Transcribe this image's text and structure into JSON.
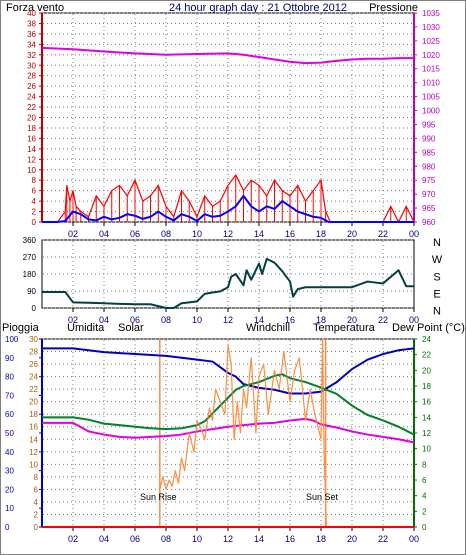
{
  "header": {
    "left_label": "Forza vento",
    "title": "24 hour graph day : 21 Ottobre 2012",
    "right_label": "Pressione"
  },
  "x_axis": {
    "ticks": [
      {
        "hour": 2,
        "label": "02"
      },
      {
        "hour": 4,
        "label": "04"
      },
      {
        "hour": 6,
        "label": "06"
      },
      {
        "hour": 8,
        "label": "08"
      },
      {
        "hour": 10,
        "label": "10"
      },
      {
        "hour": 12,
        "label": "12"
      },
      {
        "hour": 14,
        "label": "14"
      },
      {
        "hour": 16,
        "label": "16"
      },
      {
        "hour": 18,
        "label": "18"
      },
      {
        "hour": 20,
        "label": "20"
      },
      {
        "hour": 22,
        "label": "22"
      },
      {
        "hour": 24,
        "label": "00"
      }
    ]
  },
  "bottom_header": {
    "pioggia": "Pioggia",
    "umidita": "Umidita",
    "solar": "Solar",
    "windchill": "Windchill",
    "temperatura": "Temperatura",
    "dewpoint": "Dew Point (°C)"
  },
  "annotations": {
    "sunrise": "Sun Rise",
    "sunset": "Sun Set"
  },
  "colors": {
    "wind_gust": "#ff0000",
    "wind_avg": "#0000ff",
    "pressure": "#e000e0",
    "direction": "#004040",
    "humidity": "#0000c0",
    "temperature": "#008000",
    "windchill": "#008080",
    "dewpoint": "#e000e0",
    "solar": "#ff8c40",
    "rain": "#ff0000",
    "axis_left": "#c00000",
    "axis_right_top": "#c000c0",
    "axis_right_bottom": "#007000"
  },
  "chart_data": [
    {
      "type": "line",
      "name": "wind_pressure",
      "x_range": [
        0,
        24
      ],
      "y_left": {
        "ticks": [
          0,
          2,
          4,
          6,
          8,
          10,
          12,
          14,
          16,
          18,
          20,
          22,
          24,
          26,
          28,
          30,
          32,
          34,
          36,
          38,
          40
        ],
        "range": [
          0,
          40
        ]
      },
      "y_right": {
        "ticks": [
          960,
          965,
          970,
          975,
          980,
          985,
          990,
          995,
          1000,
          1005,
          1010,
          1015,
          1020,
          1025,
          1030,
          1035
        ],
        "range": [
          960,
          1035
        ]
      },
      "series": [
        {
          "key": "gust",
          "axis": "left",
          "x": [
            0,
            1,
            1.5,
            1.6,
            1.8,
            2,
            2.2,
            2.5,
            3,
            3.5,
            4,
            4.5,
            5,
            5.5,
            6,
            6.5,
            7,
            7.5,
            8,
            8.5,
            9,
            9.5,
            10,
            10.5,
            11,
            11.5,
            12,
            12.5,
            13,
            13.5,
            14,
            14.5,
            15,
            15.5,
            16,
            16.5,
            17,
            17.5,
            18,
            18.3,
            18.6,
            19,
            20,
            21,
            22,
            22.5,
            23,
            23.5,
            24
          ],
          "y": [
            0,
            0,
            2,
            7,
            4,
            6,
            3,
            2,
            1,
            5,
            3,
            6,
            7,
            5,
            8,
            4,
            5,
            7,
            3,
            1,
            6,
            4,
            1,
            5,
            3,
            4,
            7,
            9,
            6,
            8,
            7,
            5,
            8,
            6,
            5,
            7,
            4,
            6,
            8,
            2,
            0,
            0,
            0,
            0,
            0,
            3,
            0,
            3,
            0
          ]
        },
        {
          "key": "avg",
          "axis": "left",
          "x": [
            0,
            1,
            1.5,
            2,
            2.5,
            3,
            3.5,
            4,
            4.5,
            5,
            5.5,
            6,
            6.5,
            7,
            7.5,
            8,
            8.5,
            9,
            9.5,
            10,
            10.5,
            11,
            11.5,
            12,
            12.5,
            13,
            13.5,
            14,
            14.5,
            15,
            15.5,
            16,
            16.5,
            17,
            17.5,
            18,
            18.5,
            19,
            20,
            21,
            22,
            23,
            24
          ],
          "y": [
            0,
            0,
            0.2,
            2,
            1.5,
            0.5,
            0.3,
            1,
            0.5,
            0.8,
            1.5,
            1.2,
            0.6,
            1,
            2,
            1,
            0.3,
            1.5,
            1,
            0.2,
            1.5,
            1,
            1.2,
            2,
            3,
            5,
            3,
            2,
            3,
            2.5,
            4,
            3,
            2,
            1.5,
            1,
            0.8,
            0,
            0,
            0,
            0,
            0,
            0,
            0
          ]
        },
        {
          "key": "pressure",
          "axis": "right",
          "x": [
            0,
            2,
            4,
            6,
            8,
            10,
            12,
            13,
            14,
            15,
            16,
            17,
            18,
            19,
            20,
            21,
            22,
            23,
            24
          ],
          "y": [
            1022.5,
            1022,
            1021.2,
            1020.5,
            1020,
            1020.3,
            1020.5,
            1020,
            1019.2,
            1018.3,
            1017.5,
            1017,
            1017.2,
            1017.8,
            1018.3,
            1018.6,
            1018.6,
            1018.8,
            1018.8
          ]
        }
      ]
    },
    {
      "type": "line",
      "name": "wind_direction",
      "x_range": [
        0,
        24
      ],
      "y": {
        "ticks": [
          0,
          90,
          180,
          270,
          360
        ],
        "range": [
          0,
          360
        ]
      },
      "compass": [
        "N",
        "W",
        "S",
        "E",
        "N"
      ],
      "series": [
        {
          "key": "direction",
          "x": [
            0,
            1.5,
            2,
            3,
            4,
            5,
            6,
            7,
            8,
            8.5,
            9,
            9.5,
            10,
            10.5,
            11,
            11.5,
            12,
            12.2,
            12.5,
            13,
            13.2,
            13.5,
            14,
            14.2,
            14.5,
            15,
            15.5,
            16,
            16.2,
            16.5,
            17,
            18,
            19,
            20,
            21,
            22,
            23,
            23.5,
            24
          ],
          "y": [
            85,
            85,
            30,
            28,
            25,
            22,
            20,
            20,
            0,
            0,
            25,
            30,
            35,
            75,
            82,
            88,
            110,
            165,
            180,
            120,
            200,
            150,
            235,
            180,
            260,
            240,
            195,
            140,
            60,
            100,
            110,
            110,
            110,
            110,
            140,
            130,
            200,
            115,
            115
          ]
        }
      ]
    },
    {
      "type": "line",
      "name": "weather",
      "x_range": [
        0,
        24
      ],
      "y_left": {
        "ticks": [
          0,
          10,
          20,
          30,
          40,
          50,
          60,
          70,
          80,
          90,
          100
        ],
        "range": [
          0,
          100
        ]
      },
      "y_solar": {
        "ticks": [
          0,
          2,
          4,
          6,
          8,
          10,
          12,
          14,
          16,
          18,
          20,
          22,
          24,
          26,
          28,
          30
        ],
        "range": [
          0,
          30
        ]
      },
      "y_right": {
        "ticks": [
          0,
          2,
          4,
          6,
          8,
          10,
          12,
          14,
          16,
          18,
          20,
          22,
          24
        ],
        "range": [
          0,
          24
        ]
      },
      "sunrise_hour": 7.6,
      "sunset_hour": 18.3,
      "series": [
        {
          "key": "humidity",
          "axis": "left",
          "x": [
            0,
            2,
            4,
            6,
            8,
            9,
            10,
            11,
            11.5,
            12,
            12.5,
            13,
            14,
            15,
            16,
            17,
            18,
            19,
            20,
            21,
            22,
            23,
            24
          ],
          "y": [
            95,
            95,
            93,
            92,
            91,
            90,
            89,
            88,
            85,
            82,
            80,
            76,
            74,
            73,
            71,
            71,
            72,
            77,
            84,
            89,
            92,
            94,
            95
          ]
        },
        {
          "key": "temperature",
          "axis": "right",
          "x": [
            0,
            1,
            2,
            3,
            4,
            5,
            6,
            7,
            8,
            9,
            10,
            10.5,
            11,
            11.5,
            12,
            12.5,
            13,
            14,
            15,
            15.5,
            16,
            17,
            18,
            19,
            20,
            21,
            22,
            23,
            24
          ],
          "y": [
            14,
            14,
            14,
            13.7,
            13.2,
            13,
            12.8,
            12.6,
            12.5,
            12.6,
            13,
            13.5,
            14.5,
            15.5,
            16.5,
            17.5,
            18,
            18.5,
            19.3,
            19.5,
            19,
            18.5,
            17.8,
            17,
            15.5,
            14.3,
            13.6,
            12.8,
            11.8
          ]
        },
        {
          "key": "dewpoint",
          "axis": "right",
          "x": [
            0,
            2,
            3,
            4,
            5,
            6,
            7,
            8,
            9,
            10,
            11,
            12,
            13,
            14,
            15,
            16,
            17,
            17.5,
            18,
            19,
            20,
            21,
            22,
            23,
            24
          ],
          "y": [
            13.3,
            13.3,
            12.2,
            11.8,
            11.5,
            11.4,
            11.5,
            11.6,
            11.8,
            12.2,
            12.5,
            12.8,
            13,
            13.2,
            13.3,
            13.6,
            13.8,
            13.6,
            13.1,
            12.7,
            12.2,
            11.8,
            11.5,
            11.2,
            10.8
          ]
        },
        {
          "key": "solar",
          "axis": "solar",
          "x": [
            7.6,
            7.8,
            8,
            8.2,
            8.4,
            8.6,
            8.8,
            9,
            9.2,
            9.5,
            9.8,
            10,
            10.2,
            10.5,
            10.8,
            11,
            11.2,
            11.5,
            11.8,
            12,
            12.2,
            12.4,
            12.6,
            12.8,
            13,
            13.2,
            13.5,
            13.8,
            14,
            14.3,
            14.6,
            15,
            15.3,
            15.6,
            16,
            16.3,
            16.6,
            17,
            17.3,
            17.6,
            18,
            18.1,
            18.2,
            18.3,
            18.35
          ],
          "y": [
            6,
            8,
            6,
            7.5,
            6.5,
            9,
            7,
            11,
            9,
            15,
            12,
            17,
            16,
            14,
            19,
            17,
            22,
            20,
            18,
            29,
            26,
            14,
            20,
            15,
            22,
            19,
            27,
            15,
            24,
            26,
            18,
            25,
            22,
            28,
            20,
            25,
            27,
            17,
            22,
            18,
            14,
            30,
            12,
            4,
            0
          ]
        },
        {
          "key": "rain",
          "axis": "left",
          "x": [
            0,
            24
          ],
          "y": [
            0,
            0
          ]
        }
      ]
    }
  ]
}
